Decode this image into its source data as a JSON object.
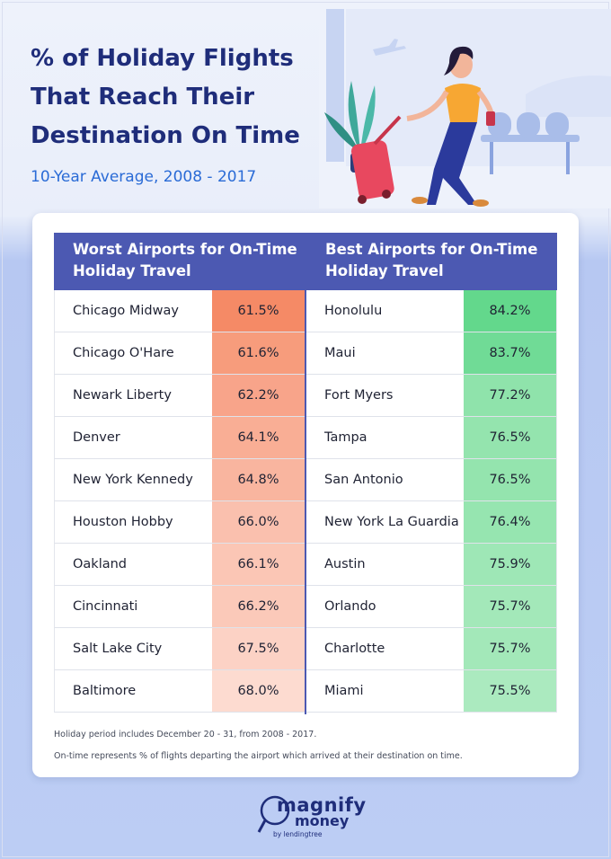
{
  "title": "% of Holiday Flights That Reach Their Destination On Time",
  "subtitle": "10-Year Average, 2008 - 2017",
  "colors": {
    "title": "#1f2d7a",
    "subtitle": "#2a6bd6",
    "header": "#4c59b2"
  },
  "chart_data": {
    "type": "table",
    "columns": [
      "Worst Airports for On-Time Holiday Travel",
      "Best Airports for On-Time Holiday Travel"
    ],
    "worst": [
      {
        "airport": "Chicago Midway",
        "value": "61.5%"
      },
      {
        "airport": "Chicago O'Hare",
        "value": "61.6%"
      },
      {
        "airport": "Newark Liberty",
        "value": "62.2%"
      },
      {
        "airport": "Denver",
        "value": "64.1%"
      },
      {
        "airport": "New York Kennedy",
        "value": "64.8%"
      },
      {
        "airport": "Houston Hobby",
        "value": "66.0%"
      },
      {
        "airport": "Oakland",
        "value": "66.1%"
      },
      {
        "airport": "Cincinnati",
        "value": "66.2%"
      },
      {
        "airport": "Salt Lake City",
        "value": "67.5%"
      },
      {
        "airport": "Baltimore",
        "value": "68.0%"
      }
    ],
    "best": [
      {
        "airport": "Honolulu",
        "value": "84.2%"
      },
      {
        "airport": "Maui",
        "value": "83.7%"
      },
      {
        "airport": "Fort Myers",
        "value": "77.2%"
      },
      {
        "airport": "Tampa",
        "value": "76.5%"
      },
      {
        "airport": "San Antonio",
        "value": "76.5%"
      },
      {
        "airport": "New York La Guardia",
        "value": "76.4%"
      },
      {
        "airport": "Austin",
        "value": "75.9%"
      },
      {
        "airport": "Orlando",
        "value": "75.7%"
      },
      {
        "airport": "Charlotte",
        "value": "75.7%"
      },
      {
        "airport": "Miami",
        "value": "75.5%"
      }
    ],
    "worst_colors": [
      "#f58a66",
      "#f79c7c",
      "#f8a48a",
      "#f9ae95",
      "#f9b59f",
      "#fac0ae",
      "#fbc6b5",
      "#fbc9b9",
      "#fcd2c5",
      "#fddbd0"
    ],
    "best_colors": [
      "#63d88c",
      "#70db96",
      "#8fe3ab",
      "#94e4ae",
      "#94e4ae",
      "#96e5b0",
      "#9ee7b6",
      "#a3e8b9",
      "#a3e8b9",
      "#abeabf"
    ]
  },
  "notes": [
    "Holiday period includes December 20 - 31, from 2008 - 2017.",
    "On-time represents % of flights departing the airport which arrived at their destination on time."
  ],
  "logo": {
    "magnify": "magnify",
    "money": "money",
    "by": "by lendingtree"
  }
}
